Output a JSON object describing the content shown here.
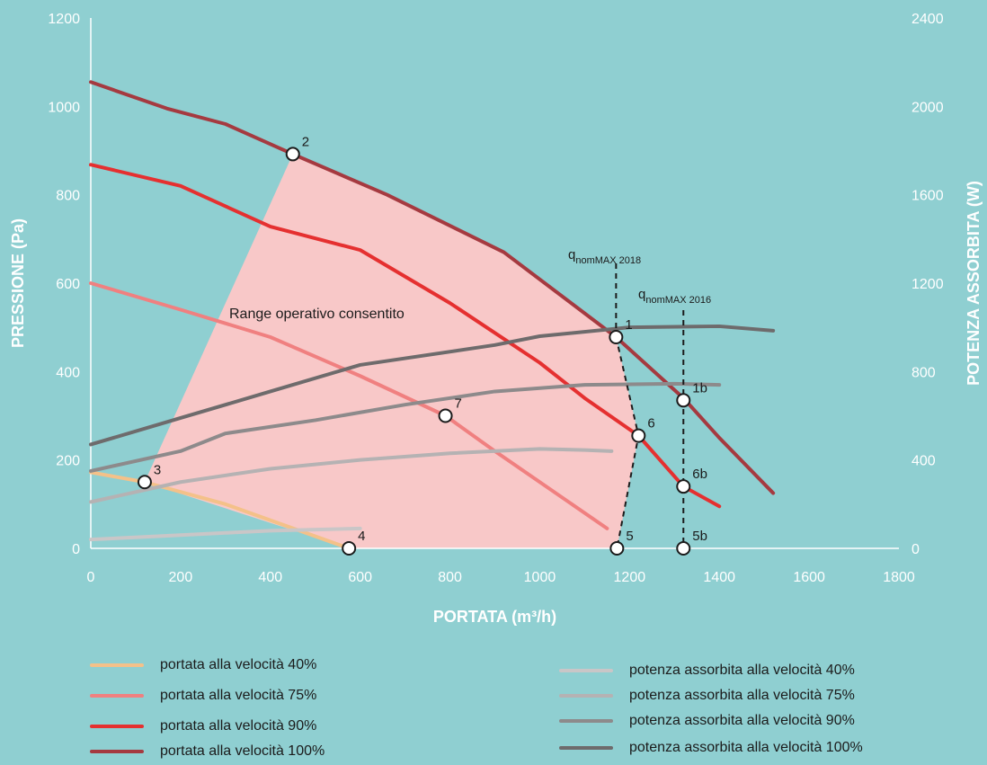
{
  "chart_data": {
    "type": "line",
    "x": {
      "label": "PORTATA (m³/h)",
      "min": 0,
      "max": 1800,
      "ticks": [
        0,
        200,
        400,
        600,
        800,
        1000,
        1200,
        1400,
        1600,
        1800
      ]
    },
    "y_left": {
      "label": "PRESSIONE (Pa)",
      "min": 0,
      "max": 1200,
      "ticks": [
        0,
        200,
        400,
        600,
        800,
        1000,
        1200
      ]
    },
    "y_right": {
      "label": "POTENZA ASSORBITA (W)",
      "min": 0,
      "max": 2400,
      "ticks": [
        0,
        400,
        800,
        1200,
        1600,
        2000,
        2400
      ]
    },
    "region": {
      "label": "Range operativo consentito",
      "color": "#f8c8c8",
      "points": [
        [
          120,
          150
        ],
        [
          450,
          892
        ],
        [
          660,
          800
        ],
        [
          920,
          670
        ],
        [
          1170,
          478
        ],
        [
          1220,
          255
        ],
        [
          1172,
          0
        ],
        [
          575,
          0
        ],
        [
          120,
          150
        ]
      ]
    },
    "series": [
      {
        "name": "portata alla velocità 40%",
        "axis": "left",
        "color": "#f4c189",
        "points": [
          [
            0,
            172
          ],
          [
            120,
            150
          ],
          [
            300,
            100
          ],
          [
            575,
            0
          ]
        ]
      },
      {
        "name": "portata alla velocità 75%",
        "axis": "left",
        "color": "#f08080",
        "points": [
          [
            0,
            600
          ],
          [
            200,
            540
          ],
          [
            400,
            478
          ],
          [
            600,
            390
          ],
          [
            790,
            300
          ],
          [
            900,
            220
          ],
          [
            1000,
            150
          ],
          [
            1150,
            45
          ]
        ]
      },
      {
        "name": "portata alla velocità 90%",
        "axis": "left",
        "color": "#e53030",
        "points": [
          [
            0,
            868
          ],
          [
            200,
            820
          ],
          [
            400,
            728
          ],
          [
            600,
            675
          ],
          [
            800,
            555
          ],
          [
            1000,
            420
          ],
          [
            1100,
            340
          ],
          [
            1220,
            255
          ],
          [
            1320,
            140
          ],
          [
            1400,
            95
          ]
        ]
      },
      {
        "name": "portata alla velocità 100%",
        "axis": "left",
        "color": "#a53a40",
        "points": [
          [
            0,
            1055
          ],
          [
            170,
            995
          ],
          [
            300,
            960
          ],
          [
            450,
            892
          ],
          [
            660,
            800
          ],
          [
            920,
            670
          ],
          [
            1170,
            478
          ],
          [
            1320,
            340
          ],
          [
            1400,
            250
          ],
          [
            1520,
            125
          ]
        ]
      },
      {
        "name": "potenza assorbita alla velocità 40%",
        "axis": "right",
        "color": "#c9c6c7",
        "points": [
          [
            0,
            40
          ],
          [
            150,
            55
          ],
          [
            300,
            70
          ],
          [
            400,
            80
          ],
          [
            600,
            90
          ]
        ]
      },
      {
        "name": "potenza assorbita alla velocità 75%",
        "axis": "right",
        "color": "#b5b2b3",
        "points": [
          [
            0,
            210
          ],
          [
            200,
            300
          ],
          [
            400,
            360
          ],
          [
            600,
            400
          ],
          [
            800,
            430
          ],
          [
            1000,
            450
          ],
          [
            1100,
            445
          ],
          [
            1160,
            440
          ]
        ]
      },
      {
        "name": "potenza assorbita alla velocità 90%",
        "axis": "right",
        "color": "#8d8a8b",
        "points": [
          [
            0,
            350
          ],
          [
            200,
            440
          ],
          [
            300,
            520
          ],
          [
            500,
            580
          ],
          [
            700,
            650
          ],
          [
            900,
            710
          ],
          [
            1100,
            740
          ],
          [
            1300,
            745
          ],
          [
            1400,
            740
          ]
        ]
      },
      {
        "name": "potenza assorbita alla velocità 100%",
        "axis": "right",
        "color": "#6e6b6c",
        "points": [
          [
            0,
            470
          ],
          [
            200,
            590
          ],
          [
            400,
            710
          ],
          [
            600,
            830
          ],
          [
            900,
            920
          ],
          [
            1000,
            960
          ],
          [
            1200,
            1000
          ],
          [
            1400,
            1005
          ],
          [
            1520,
            985
          ]
        ]
      }
    ],
    "markers": [
      {
        "label": "1",
        "x": 1170,
        "y": 478
      },
      {
        "label": "1b",
        "x": 1320,
        "y": 335
      },
      {
        "label": "2",
        "x": 450,
        "y": 892
      },
      {
        "label": "3",
        "x": 120,
        "y": 150
      },
      {
        "label": "4",
        "x": 575,
        "y": 0
      },
      {
        "label": "5",
        "x": 1172,
        "y": 0
      },
      {
        "label": "5b",
        "x": 1320,
        "y": 0
      },
      {
        "label": "6",
        "x": 1220,
        "y": 255
      },
      {
        "label": "6b",
        "x": 1320,
        "y": 140
      },
      {
        "label": "7",
        "x": 790,
        "y": 300
      }
    ],
    "annotations": [
      {
        "main": "q",
        "sub": "nomMAX 2018"
      },
      {
        "main": "q",
        "sub": "nomMAX 2016"
      }
    ],
    "legend": {
      "left": [
        "portata alla velocità 40%",
        "portata alla velocità 75%",
        "portata alla velocità 90%",
        "portata alla velocità 100%"
      ],
      "right": [
        "potenza assorbita alla velocità 40%",
        "potenza assorbita alla velocità 75%",
        "potenza assorbita alla velocità 90%",
        "potenza assorbita alla velocità 100%"
      ]
    }
  }
}
